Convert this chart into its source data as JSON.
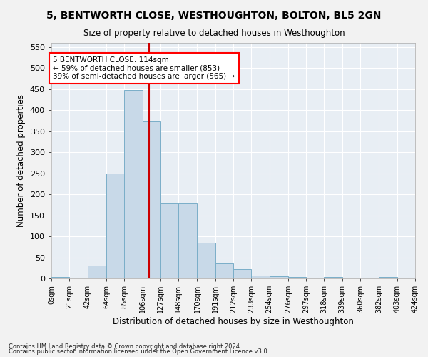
{
  "title": "5, BENTWORTH CLOSE, WESTHOUGHTON, BOLTON, BL5 2GN",
  "subtitle": "Size of property relative to detached houses in Westhoughton",
  "xlabel": "Distribution of detached houses by size in Westhoughton",
  "ylabel": "Number of detached properties",
  "footnote1": "Contains HM Land Registry data © Crown copyright and database right 2024.",
  "footnote2": "Contains public sector information licensed under the Open Government Licence v3.0.",
  "annotation_line1": "5 BENTWORTH CLOSE: 114sqm",
  "annotation_line2": "← 59% of detached houses are smaller (853)",
  "annotation_line3": "39% of semi-detached houses are larger (565) →",
  "property_size": 114,
  "bar_color": "#c8d9e8",
  "bar_edge_color": "#7aaec8",
  "reference_line_color": "#cc0000",
  "axes_bg_color": "#e8eef4",
  "fig_bg_color": "#f2f2f2",
  "grid_color": "#ffffff",
  "bin_edges": [
    0,
    21,
    42,
    64,
    85,
    106,
    127,
    148,
    170,
    191,
    212,
    233,
    254,
    276,
    297,
    318,
    339,
    360,
    382,
    403,
    424
  ],
  "bin_labels": [
    "0sqm",
    "21sqm",
    "42sqm",
    "64sqm",
    "85sqm",
    "106sqm",
    "127sqm",
    "148sqm",
    "170sqm",
    "191sqm",
    "212sqm",
    "233sqm",
    "254sqm",
    "276sqm",
    "297sqm",
    "318sqm",
    "339sqm",
    "360sqm",
    "382sqm",
    "403sqm",
    "424sqm"
  ],
  "counts": [
    4,
    0,
    30,
    250,
    448,
    373,
    178,
    178,
    85,
    35,
    22,
    6,
    5,
    4,
    0,
    4,
    0,
    0,
    4,
    0
  ],
  "ylim": [
    0,
    560
  ],
  "yticks": [
    0,
    50,
    100,
    150,
    200,
    250,
    300,
    350,
    400,
    450,
    500,
    550
  ]
}
